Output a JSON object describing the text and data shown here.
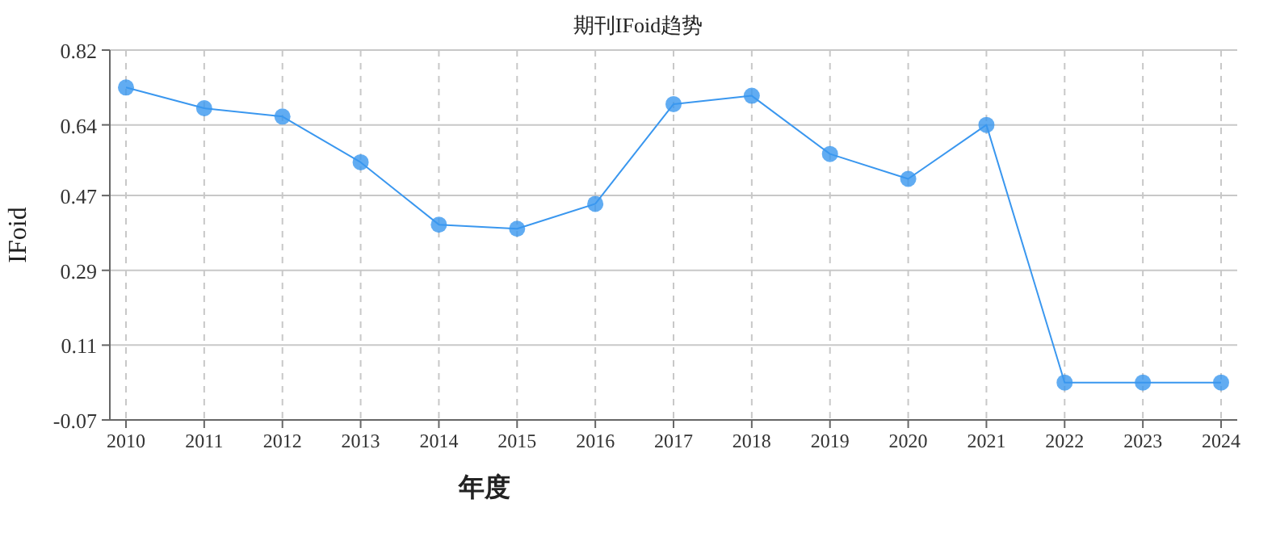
{
  "chart_data": {
    "type": "line",
    "title": "期刊IFoid趋势",
    "xlabel": "年度",
    "ylabel": "IFoid",
    "categories": [
      "2010",
      "2011",
      "2012",
      "2013",
      "2014",
      "2015",
      "2016",
      "2017",
      "2018",
      "2019",
      "2020",
      "2021",
      "2022",
      "2023",
      "2024"
    ],
    "series": [
      {
        "color": "#3a97ef",
        "values": [
          0.73,
          0.68,
          0.66,
          0.55,
          0.4,
          0.39,
          0.45,
          0.69,
          0.71,
          0.57,
          0.51,
          0.64,
          0.02,
          0.02,
          0.02
        ]
      }
    ],
    "ylim": [
      -0.07,
      0.82
    ],
    "yticks": [
      -0.07,
      0.11,
      0.29,
      0.47,
      0.64,
      0.82
    ],
    "grid": true,
    "marker": "circle",
    "line_style": "solid"
  }
}
